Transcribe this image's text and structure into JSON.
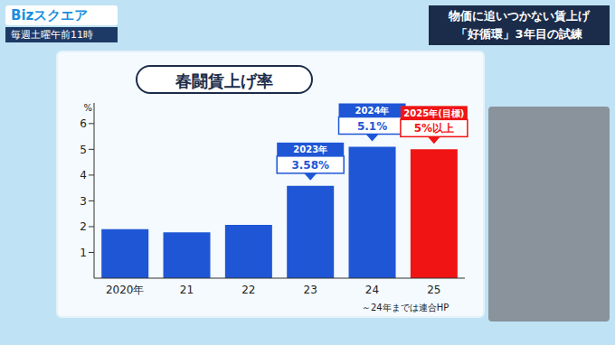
{
  "header": {
    "logo": "Bizスクエア",
    "schedule": "毎週土曜午前11時",
    "headline": [
      "物価に追いつかない賃上げ",
      "「好循環」3年目の試練"
    ]
  },
  "chart_data": {
    "type": "bar",
    "title": "春闘賃上げ率",
    "ylabel": "%",
    "categories": [
      "2020年",
      "21",
      "22",
      "23",
      "24",
      "25"
    ],
    "values": [
      1.9,
      1.78,
      2.07,
      3.58,
      5.1,
      5.0
    ],
    "colors": [
      "#1f56d6",
      "#1f56d6",
      "#1f56d6",
      "#1f56d6",
      "#1f56d6",
      "#f01414"
    ],
    "ylim": [
      0,
      6.8
    ],
    "yticks": [
      1,
      2,
      3,
      4,
      5,
      6
    ],
    "grid": false,
    "annotations": [
      {
        "category": "23",
        "label": "2023年",
        "text": "3.58%"
      },
      {
        "category": "24",
        "label": "2024年",
        "text": "5.1%"
      },
      {
        "category": "25",
        "label": "2025年(目標)",
        "text": "5%以上"
      }
    ],
    "note": "～24年までは連合HP"
  }
}
